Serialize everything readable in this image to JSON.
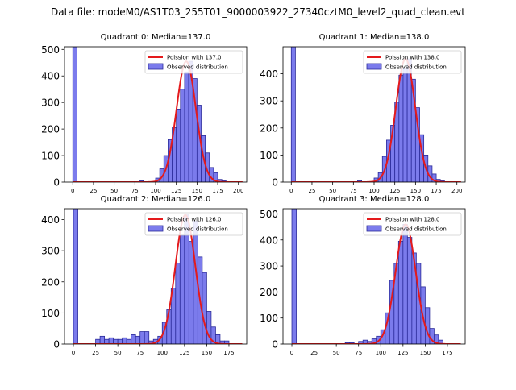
{
  "suptitle": "Data file: modeM0/AS1T03_255T01_9000003922_27340cztM0_level2_quad_clean.evt",
  "colors": {
    "hist_fill": "#7b7bec",
    "hist_edge": "#2b2b9a",
    "fit_line": "#e41a1c"
  },
  "chart_data": [
    {
      "type": "bar",
      "title": "Quadrant 0: Median=137.0",
      "legend": [
        "Poission with 137.0",
        "Observed distribution"
      ],
      "legend_position": "upper-right",
      "median": 137.0,
      "xlim": [
        -10,
        210
      ],
      "ylim": [
        0,
        510
      ],
      "xticks": [
        0,
        25,
        50,
        75,
        100,
        125,
        150,
        175,
        200
      ],
      "yticks": [
        0,
        100,
        200,
        300,
        400,
        500
      ],
      "bin_width": 5,
      "bins": [
        [
          0,
          510
        ],
        [
          80,
          5
        ],
        [
          100,
          15
        ],
        [
          105,
          50
        ],
        [
          110,
          100
        ],
        [
          115,
          160
        ],
        [
          120,
          205
        ],
        [
          125,
          275
        ],
        [
          130,
          350
        ],
        [
          135,
          415
        ],
        [
          140,
          455
        ],
        [
          145,
          390
        ],
        [
          150,
          290
        ],
        [
          155,
          175
        ],
        [
          160,
          110
        ],
        [
          165,
          55
        ],
        [
          170,
          35
        ],
        [
          175,
          10
        ],
        [
          180,
          5
        ]
      ]
    },
    {
      "type": "bar",
      "title": "Quadrant 1: Median=138.0",
      "legend": [
        "Poission with 138.0",
        "Observed distribution"
      ],
      "legend_position": "upper-right",
      "median": 138.0,
      "xlim": [
        -10,
        210
      ],
      "ylim": [
        0,
        500
      ],
      "xticks": [
        0,
        25,
        50,
        75,
        100,
        125,
        150,
        175,
        200
      ],
      "yticks": [
        0,
        100,
        200,
        300,
        400
      ],
      "bin_width": 5,
      "bins": [
        [
          0,
          500
        ],
        [
          80,
          5
        ],
        [
          100,
          15
        ],
        [
          105,
          35
        ],
        [
          110,
          95
        ],
        [
          115,
          155
        ],
        [
          120,
          210
        ],
        [
          125,
          295
        ],
        [
          130,
          395
        ],
        [
          135,
          420
        ],
        [
          140,
          455
        ],
        [
          145,
          380
        ],
        [
          150,
          275
        ],
        [
          155,
          175
        ],
        [
          160,
          100
        ],
        [
          165,
          60
        ],
        [
          170,
          30
        ],
        [
          175,
          10
        ],
        [
          180,
          5
        ]
      ]
    },
    {
      "type": "bar",
      "title": "Quadrant 2: Median=126.0",
      "legend": [
        "Poission with 126.0",
        "Observed distribution"
      ],
      "legend_position": "upper-right",
      "median": 126.0,
      "xlim": [
        -10,
        195
      ],
      "ylim": [
        0,
        435
      ],
      "xticks": [
        0,
        25,
        50,
        75,
        100,
        125,
        150,
        175
      ],
      "yticks": [
        0,
        100,
        200,
        300,
        400
      ],
      "bin_width": 5,
      "bins": [
        [
          0,
          435
        ],
        [
          25,
          15
        ],
        [
          30,
          25
        ],
        [
          35,
          15
        ],
        [
          40,
          20
        ],
        [
          45,
          15
        ],
        [
          50,
          15
        ],
        [
          55,
          20
        ],
        [
          60,
          15
        ],
        [
          65,
          30
        ],
        [
          70,
          25
        ],
        [
          75,
          40
        ],
        [
          80,
          40
        ],
        [
          85,
          10
        ],
        [
          90,
          15
        ],
        [
          95,
          25
        ],
        [
          100,
          70
        ],
        [
          105,
          110
        ],
        [
          110,
          180
        ],
        [
          115,
          260
        ],
        [
          120,
          350
        ],
        [
          125,
          415
        ],
        [
          130,
          330
        ],
        [
          135,
          395
        ],
        [
          140,
          280
        ],
        [
          145,
          230
        ],
        [
          150,
          105
        ],
        [
          155,
          55
        ],
        [
          160,
          30
        ],
        [
          165,
          10
        ],
        [
          170,
          10
        ]
      ]
    },
    {
      "type": "bar",
      "title": "Quadrant 3: Median=128.0",
      "legend": [
        "Poission with 128.0",
        "Observed distribution"
      ],
      "legend_position": "upper-right",
      "median": 128.0,
      "xlim": [
        -10,
        195
      ],
      "ylim": [
        0,
        520
      ],
      "xticks": [
        0,
        25,
        50,
        75,
        100,
        125,
        150,
        175
      ],
      "yticks": [
        0,
        100,
        200,
        300,
        400,
        500
      ],
      "bin_width": 5,
      "bins": [
        [
          0,
          520
        ],
        [
          60,
          5
        ],
        [
          65,
          5
        ],
        [
          75,
          10
        ],
        [
          80,
          15
        ],
        [
          85,
          10
        ],
        [
          90,
          20
        ],
        [
          95,
          30
        ],
        [
          100,
          55
        ],
        [
          105,
          120
        ],
        [
          110,
          245
        ],
        [
          115,
          310
        ],
        [
          120,
          395
        ],
        [
          125,
          460
        ],
        [
          130,
          410
        ],
        [
          135,
          350
        ],
        [
          140,
          310
        ],
        [
          145,
          220
        ],
        [
          150,
          140
        ],
        [
          155,
          60
        ],
        [
          160,
          35
        ],
        [
          165,
          15
        ]
      ]
    }
  ]
}
